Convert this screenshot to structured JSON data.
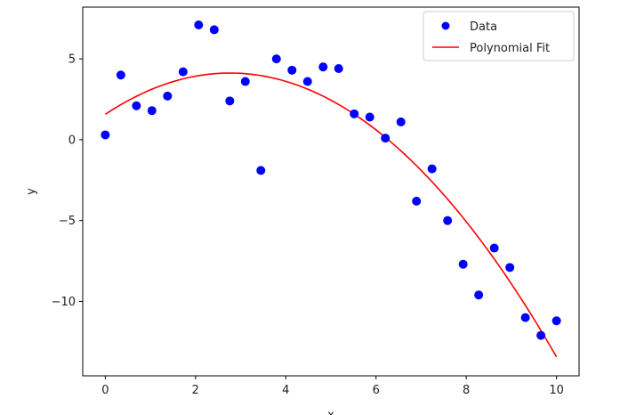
{
  "chart_data": {
    "type": "scatter",
    "title": "",
    "xlabel": "x",
    "ylabel": "y",
    "xlim": [
      -0.5,
      10.5
    ],
    "ylim": [
      -14.6,
      8.2
    ],
    "xticks": [
      0,
      2,
      4,
      6,
      8,
      10
    ],
    "yticks": [
      -10,
      -5,
      0,
      5
    ],
    "ytick_labels": [
      "−10",
      "−5",
      "0",
      "5"
    ],
    "grid": false,
    "legend_position": "top-right",
    "series": [
      {
        "name": "Data",
        "kind": "scatter",
        "color": "#0000ff",
        "x": [
          0.0,
          0.345,
          0.69,
          1.034,
          1.379,
          1.724,
          2.069,
          2.414,
          2.759,
          3.103,
          3.448,
          3.793,
          4.138,
          4.483,
          4.828,
          5.172,
          5.517,
          5.862,
          6.207,
          6.552,
          6.897,
          7.241,
          7.586,
          7.931,
          8.276,
          8.621,
          8.966,
          9.31,
          9.655,
          10.0
        ],
        "y": [
          0.3,
          4.0,
          2.1,
          1.8,
          2.7,
          4.2,
          7.1,
          6.8,
          2.4,
          3.6,
          -1.9,
          5.0,
          4.3,
          3.6,
          4.5,
          4.4,
          1.6,
          1.4,
          0.1,
          1.1,
          -3.8,
          -1.8,
          -5.0,
          -7.7,
          -9.6,
          -6.7,
          -7.9,
          -11.0,
          -12.1,
          -11.2
        ]
      },
      {
        "name": "Polynomial Fit",
        "kind": "line",
        "color": "#ff0000",
        "coefficients": [
          1.57,
          1.85,
          -0.335
        ]
      }
    ]
  }
}
